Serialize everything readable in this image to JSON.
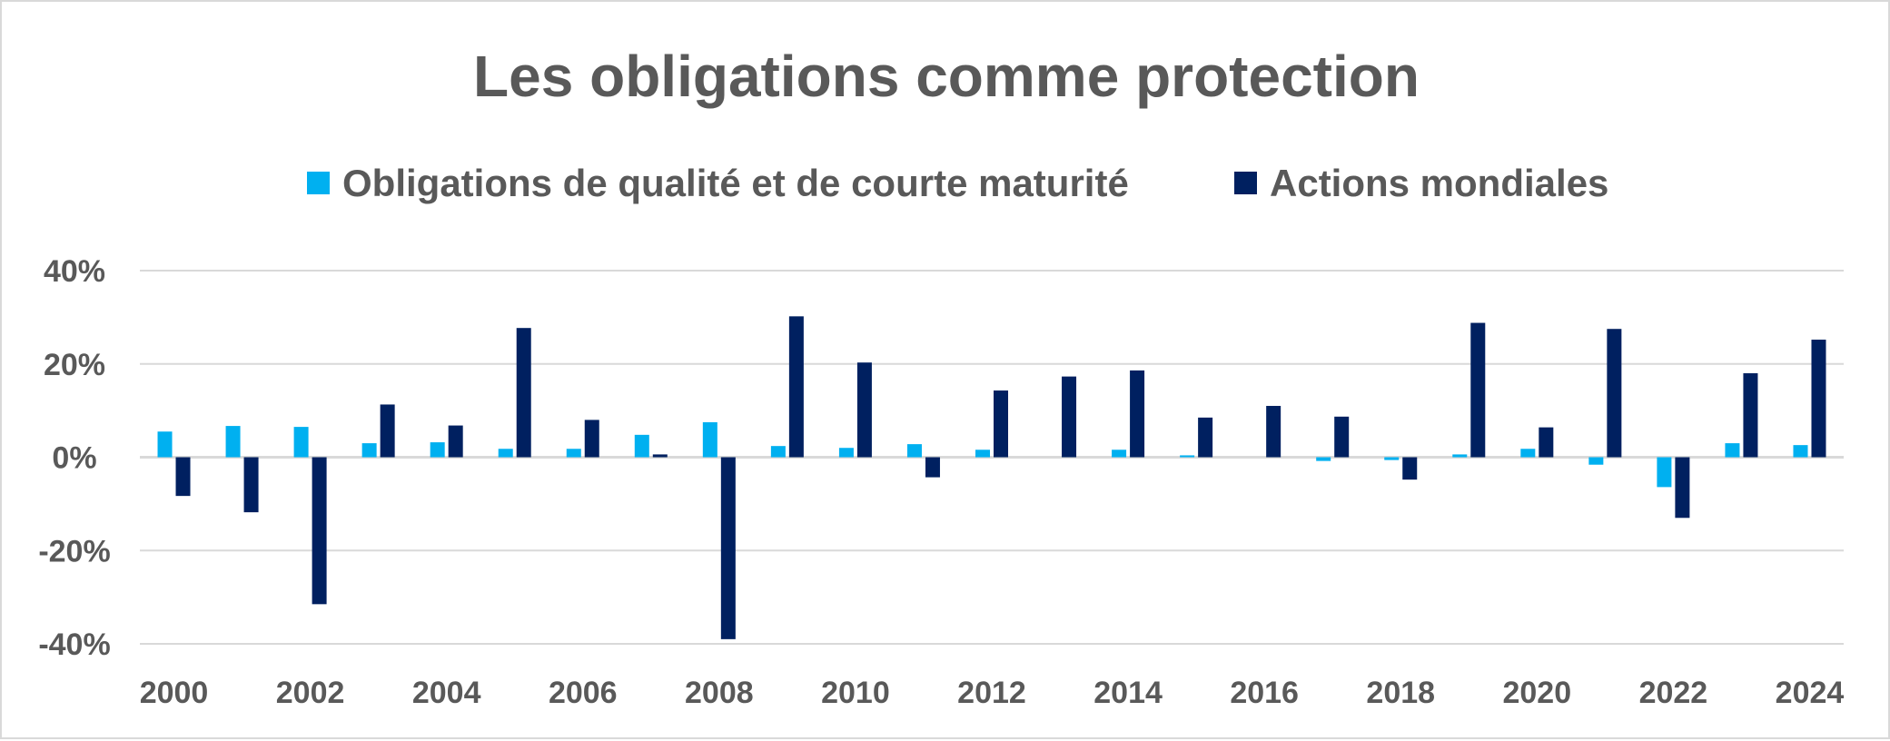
{
  "chart_data": {
    "type": "bar",
    "title": "Les obligations comme protection",
    "xlabel": "",
    "ylabel": "",
    "ylim": [
      -40,
      40
    ],
    "yticks": [
      40,
      20,
      0,
      -20,
      -40
    ],
    "ytick_labels": [
      "40%",
      "20%",
      "0%",
      "-20%",
      "-40%"
    ],
    "categories": [
      "2000",
      "2001",
      "2002",
      "2003",
      "2004",
      "2005",
      "2006",
      "2007",
      "2008",
      "2009",
      "2010",
      "2011",
      "2012",
      "2013",
      "2014",
      "2015",
      "2016",
      "2017",
      "2018",
      "2019",
      "2020",
      "2021",
      "2022",
      "2023",
      "2024"
    ],
    "xtick_labels": [
      "2000",
      "2002",
      "2004",
      "2006",
      "2008",
      "2010",
      "2012",
      "2014",
      "2016",
      "2018",
      "2020",
      "2022",
      "2024"
    ],
    "grid": true,
    "legend_position": "top-center",
    "series": [
      {
        "name": "Obligations de qualité et de courte maturité",
        "color": "#00b0f0",
        "values": [
          5.5,
          6.7,
          6.5,
          3.0,
          3.2,
          1.8,
          1.8,
          4.8,
          7.5,
          2.4,
          2.0,
          2.8,
          1.6,
          0.0,
          1.6,
          0.4,
          0.0,
          -0.8,
          -0.6,
          0.6,
          1.8,
          -1.6,
          -6.4,
          3.0,
          2.6
        ]
      },
      {
        "name": "Actions mondiales",
        "color": "#002060",
        "values": [
          -8.3,
          -11.8,
          -31.5,
          11.3,
          6.8,
          27.7,
          8.0,
          0.6,
          -39.0,
          30.2,
          20.3,
          -4.3,
          14.3,
          17.3,
          18.6,
          8.5,
          11.0,
          8.7,
          -4.8,
          28.8,
          6.4,
          27.5,
          -13.0,
          18.0,
          25.2
        ]
      }
    ]
  }
}
